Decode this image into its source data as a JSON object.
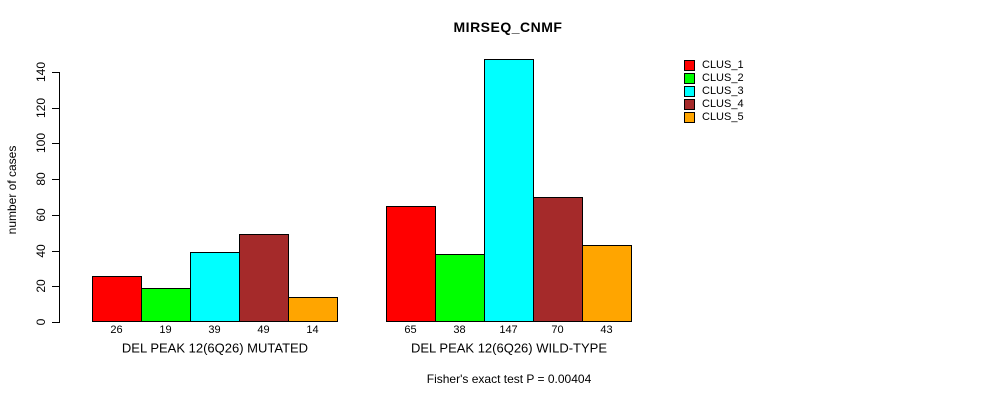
{
  "chart_data": {
    "type": "bar",
    "title": "MIRSEQ_CNMF",
    "ylabel": "number of cases",
    "xlabel": "",
    "ylim": [
      0,
      140
    ],
    "yticks": [
      0,
      20,
      40,
      60,
      80,
      100,
      120,
      140
    ],
    "grid": false,
    "legend_position": "right",
    "categories": [
      "DEL PEAK 12(6Q26) MUTATED",
      "DEL PEAK 12(6Q26) WILD-TYPE"
    ],
    "series": [
      {
        "name": "CLUS_1",
        "color": "#FF0000",
        "values": [
          26,
          65
        ]
      },
      {
        "name": "CLUS_2",
        "color": "#00FF00",
        "values": [
          19,
          38
        ]
      },
      {
        "name": "CLUS_3",
        "color": "#00FFFF",
        "values": [
          39,
          147
        ]
      },
      {
        "name": "CLUS_4",
        "color": "#A52A2A",
        "values": [
          49,
          70
        ]
      },
      {
        "name": "CLUS_5",
        "color": "#FFA500",
        "values": [
          14,
          43
        ]
      }
    ],
    "bar_value_labels": [
      [
        26,
        19,
        39,
        49,
        14
      ],
      [
        65,
        38,
        147,
        70,
        43
      ]
    ],
    "annotation": "Fisher's exact test P = 0.00404"
  }
}
